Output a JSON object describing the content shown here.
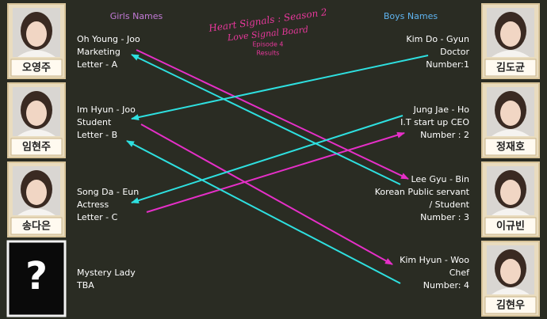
{
  "title": {
    "line1": "Heart Signals : Season 2",
    "line2": "Love Signal Board",
    "episode": "Episode 4",
    "results": "Results"
  },
  "girls_header": "Girls Names",
  "boys_header": "Boys Names",
  "girls": [
    {
      "photo_label": "오영주",
      "lines": [
        "Oh Young - Joo",
        "Marketing",
        "Letter - A"
      ]
    },
    {
      "photo_label": "임현주",
      "lines": [
        "Im Hyun - Joo",
        "Student",
        "Letter - B"
      ]
    },
    {
      "photo_label": "송다은",
      "lines": [
        "Song Da - Eun",
        "Actress",
        "Letter - C"
      ]
    },
    {
      "photo_label": "?",
      "lines": [
        "Mystery Lady",
        "TBA"
      ]
    }
  ],
  "boys": [
    {
      "photo_label": "김도균",
      "lines": [
        "Kim Do - Gyun",
        "Doctor",
        "Number:1"
      ]
    },
    {
      "photo_label": "정재호",
      "lines": [
        "Jung Jae - Ho",
        "I.T start up CEO",
        "Number : 2"
      ]
    },
    {
      "photo_label": "이규빈",
      "lines": [
        "Lee Gyu - Bin",
        "Korean Public servant",
        " / Student",
        "Number : 3"
      ]
    },
    {
      "photo_label": "김현우",
      "lines": [
        "Kim Hyun - Woo",
        "Chef",
        "Number: 4"
      ]
    }
  ]
}
